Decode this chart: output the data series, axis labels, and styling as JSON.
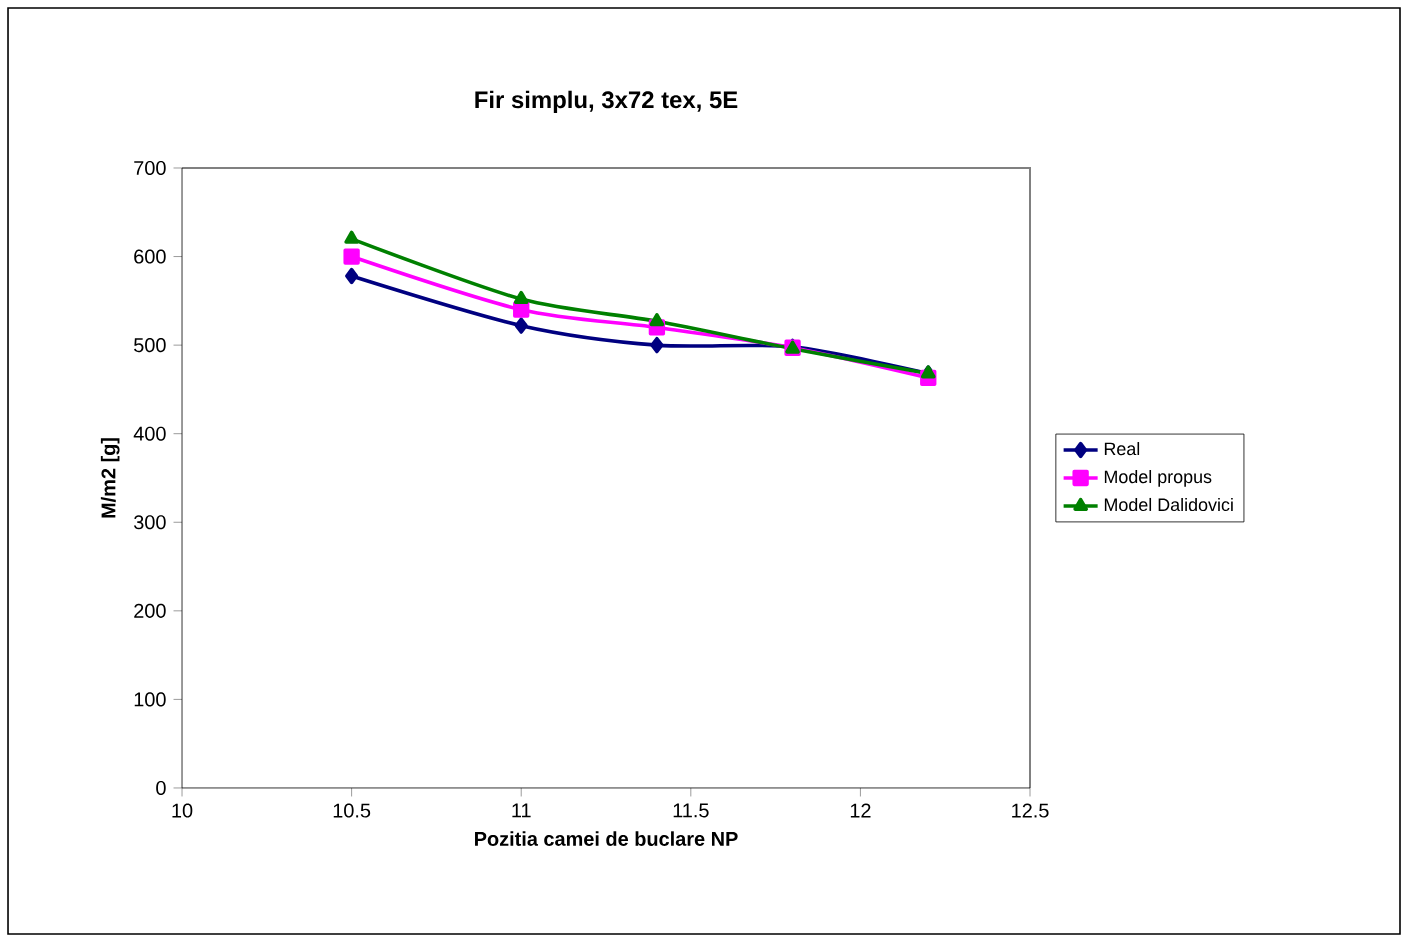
{
  "chart_data": {
    "type": "line",
    "title": "Fir simplu, 3x72 tex, 5E",
    "xlabel": "Pozitia camei de buclare NP",
    "ylabel": "M/m2 [g]",
    "x": [
      10.5,
      11,
      11.4,
      11.8,
      12.2
    ],
    "series": [
      {
        "name": "Real",
        "color": "#000080",
        "marker": "diamond",
        "values": [
          578,
          522,
          500,
          498,
          468
        ]
      },
      {
        "name": "Model propus",
        "color": "#ff00ff",
        "marker": "square",
        "values": [
          600,
          540,
          520,
          497,
          463
        ]
      },
      {
        "name": "Model Dalidovici",
        "color": "#008000",
        "marker": "triangle",
        "values": [
          620,
          552,
          527,
          496,
          468
        ]
      }
    ],
    "xlim": [
      10,
      12.5
    ],
    "xticks": [
      10,
      10.5,
      11,
      11.5,
      12,
      12.5
    ],
    "ylim": [
      0,
      700
    ],
    "yticks": [
      0,
      100,
      200,
      300,
      400,
      500,
      600,
      700
    ],
    "grid": false,
    "legend": "right"
  }
}
